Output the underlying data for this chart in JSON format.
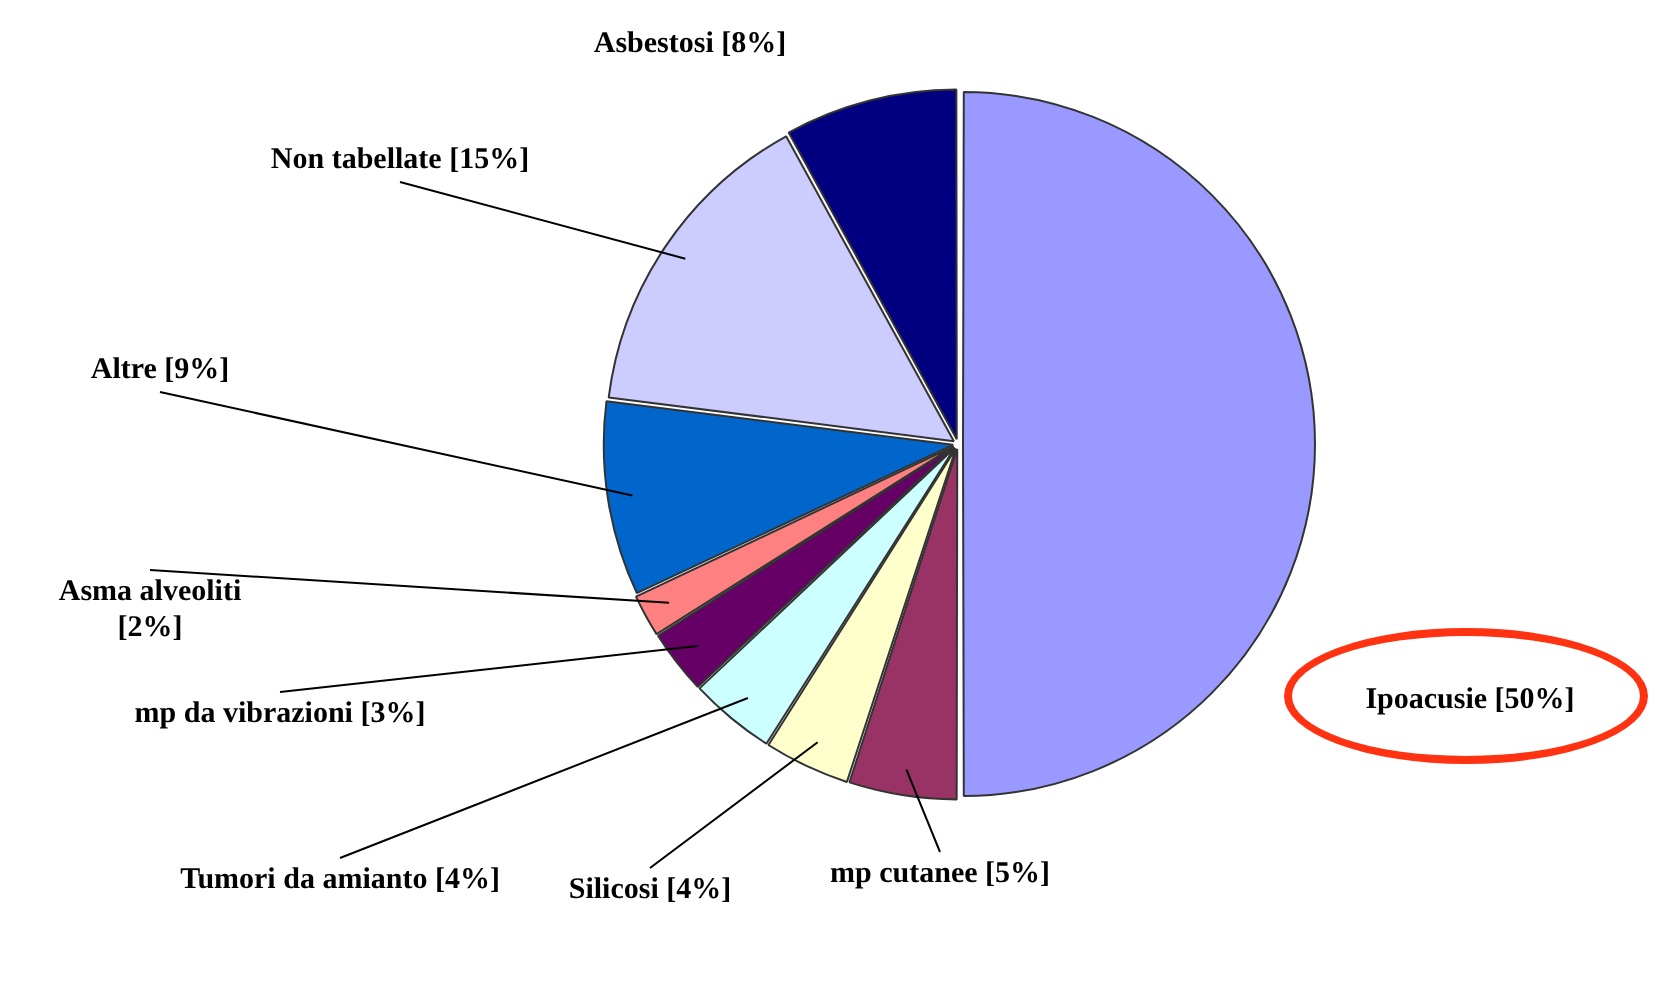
{
  "chart_data": {
    "type": "pie",
    "categories": [
      "Ipoacusie",
      "mp cutanee",
      "Silicosi",
      "Tumori da amianto",
      "mp da vibrazioni",
      "Asma alveoliti",
      "Altre",
      "Non tabellate",
      "Asbestosi"
    ],
    "values": [
      50,
      5,
      4,
      4,
      3,
      2,
      9,
      15,
      8
    ],
    "value_labels": [
      "[50%]",
      "[5%]",
      "[4%]",
      "[4%]",
      "[3%]",
      "[2%]",
      "[9%]",
      "[15%]",
      "[8%]"
    ],
    "colors": [
      "#9999ff",
      "#993366",
      "#ffffcc",
      "#ccffff",
      "#660066",
      "#ff8080",
      "#0066cc",
      "#ccccff",
      "#000080"
    ],
    "legend": false
  }
}
